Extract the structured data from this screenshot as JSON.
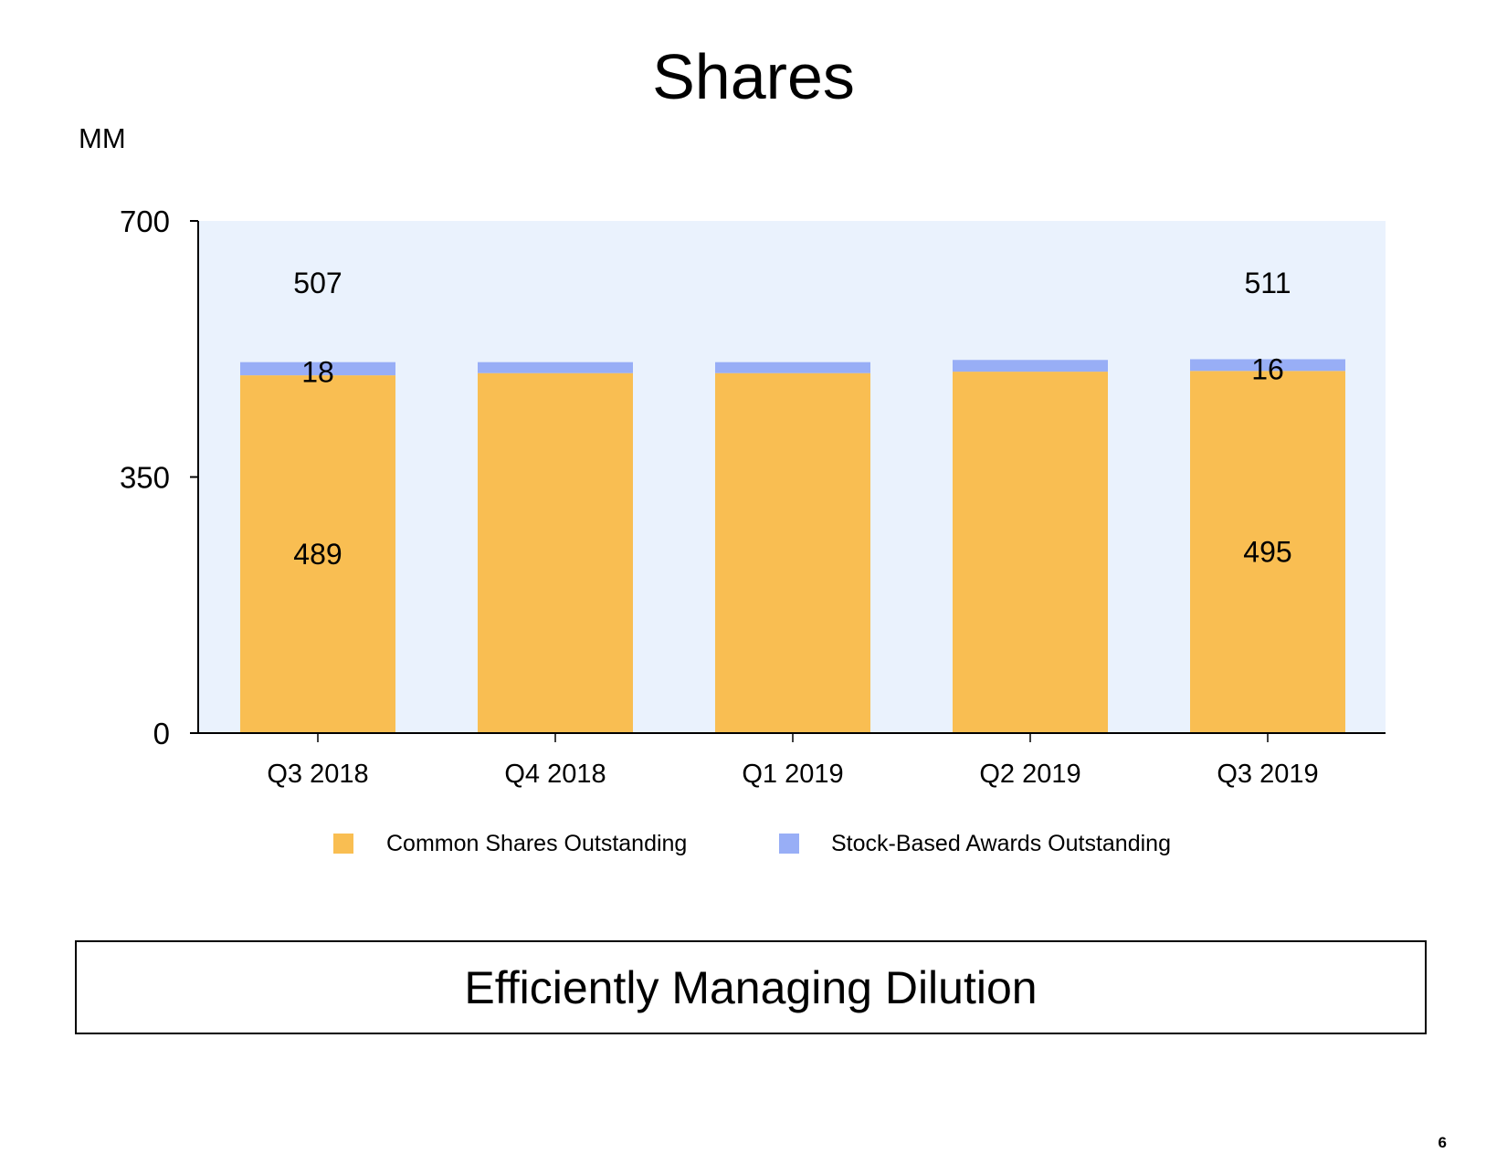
{
  "page": {
    "title": "Shares",
    "unit_label": "MM",
    "takeaway": "Efficiently Managing Dilution",
    "page_number": "6"
  },
  "colors": {
    "common": "#F9BE52",
    "awards": "#98AEF6",
    "plot_bg": "#EAF2FD",
    "axis": "#000000"
  },
  "chart_data": {
    "type": "bar",
    "stacked": true,
    "title": "Shares",
    "ylabel": "MM",
    "ylim": [
      0,
      700
    ],
    "yticks": [
      0,
      350,
      700
    ],
    "categories": [
      "Q3 2018",
      "Q4 2018",
      "Q1 2019",
      "Q2 2019",
      "Q3 2019"
    ],
    "series": [
      {
        "name": "Common Shares Outstanding",
        "color": "#F9BE52",
        "values": [
          489,
          492,
          492,
          494,
          495
        ]
      },
      {
        "name": "Stock-Based Awards Outstanding",
        "color": "#98AEF6",
        "values": [
          18,
          15,
          15,
          16,
          16
        ]
      }
    ],
    "data_labels": {
      "common": [
        "489",
        "",
        "",
        "",
        "495"
      ],
      "awards": [
        "18",
        "",
        "",
        "",
        "16"
      ],
      "totals": [
        "507",
        "",
        "",
        "",
        "511"
      ]
    },
    "legend_position": "bottom"
  }
}
